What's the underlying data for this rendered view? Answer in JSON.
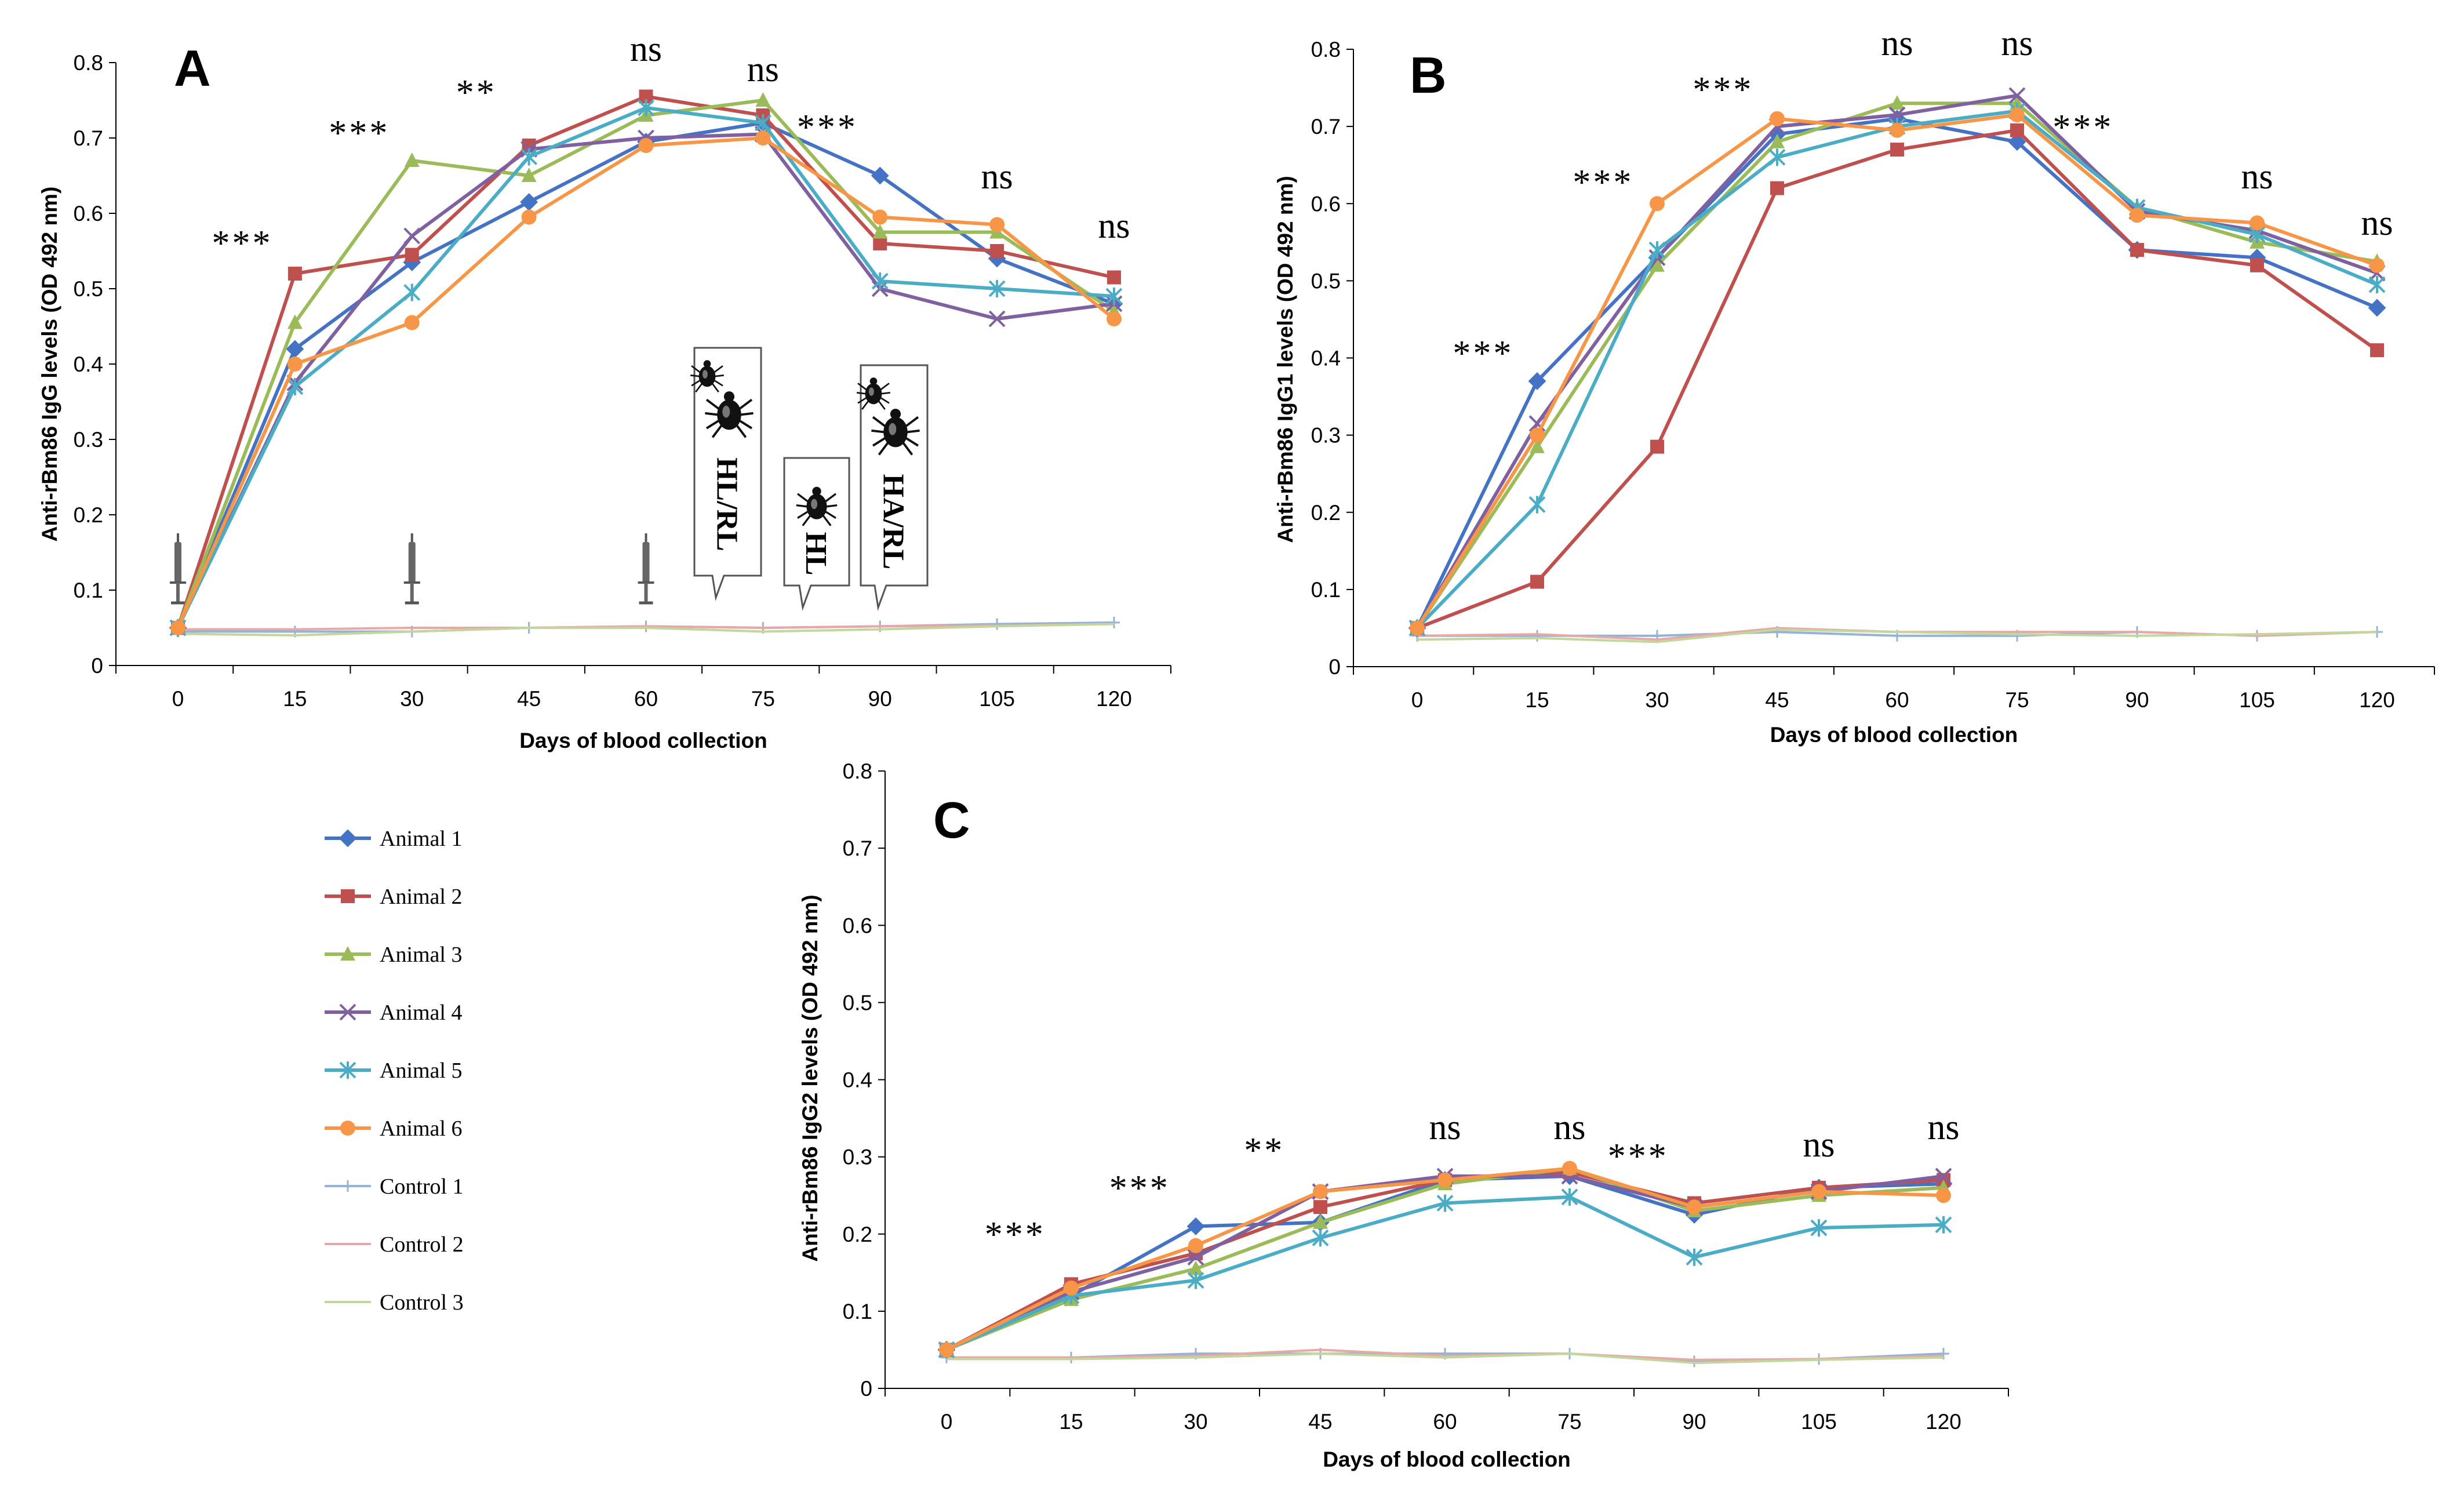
{
  "figure": {
    "x_axis_title": "Days of blood collection",
    "legend": {
      "entries": [
        {
          "name": "Animal 1",
          "color": "#4472C4",
          "marker": "diamond"
        },
        {
          "name": "Animal 2",
          "color": "#C0504D",
          "marker": "square"
        },
        {
          "name": "Animal 3",
          "color": "#9BBB59",
          "marker": "triangle"
        },
        {
          "name": "Animal 4",
          "color": "#7F60A0",
          "marker": "x"
        },
        {
          "name": "Animal 5",
          "color": "#4BACC6",
          "marker": "star"
        },
        {
          "name": "Animal 6",
          "color": "#F79646",
          "marker": "circle"
        },
        {
          "name": "Control 1",
          "color": "#95B3D7",
          "marker": "plus"
        },
        {
          "name": "Control 2",
          "color": "#E6A9A7",
          "marker": "none"
        },
        {
          "name": "Control 3",
          "color": "#C3D69B",
          "marker": "none"
        }
      ]
    },
    "callouts": [
      {
        "text": "HL/RL",
        "ticks": 2
      },
      {
        "text": "HL",
        "ticks": 1
      },
      {
        "text": "HA/RL",
        "ticks": 2
      }
    ],
    "syringe_days": [
      0,
      30,
      60
    ]
  },
  "chart_data": [
    {
      "panel": "A",
      "type": "line",
      "ylabel": "Anti-rBm86 IgG levels (OD 492 nm)",
      "xlabel": "Days of blood collection",
      "x": [
        0,
        15,
        30,
        45,
        60,
        75,
        90,
        105,
        120
      ],
      "ylim": [
        0,
        0.8
      ],
      "yticks": [
        "0",
        "0.1",
        "0.2",
        "0.3",
        "0.4",
        "0.5",
        "0.6",
        "0.7",
        "0.8"
      ],
      "significance": [
        "",
        "***",
        "***",
        "**",
        "ns",
        "ns",
        "***",
        "ns",
        "ns"
      ],
      "series": [
        {
          "name": "Animal 1",
          "values": [
            0.05,
            0.42,
            0.535,
            0.615,
            0.695,
            0.72,
            0.65,
            0.54,
            0.48
          ]
        },
        {
          "name": "Animal 2",
          "values": [
            0.05,
            0.52,
            0.545,
            0.69,
            0.755,
            0.73,
            0.56,
            0.55,
            0.515
          ]
        },
        {
          "name": "Animal 3",
          "values": [
            0.05,
            0.455,
            0.67,
            0.65,
            0.73,
            0.75,
            0.575,
            0.575,
            0.47
          ]
        },
        {
          "name": "Animal 4",
          "values": [
            0.05,
            0.375,
            0.57,
            0.685,
            0.7,
            0.705,
            0.5,
            0.46,
            0.48
          ]
        },
        {
          "name": "Animal 5",
          "values": [
            0.05,
            0.37,
            0.495,
            0.675,
            0.74,
            0.72,
            0.51,
            0.5,
            0.49
          ]
        },
        {
          "name": "Animal 6",
          "values": [
            0.05,
            0.4,
            0.455,
            0.595,
            0.69,
            0.7,
            0.595,
            0.585,
            0.46
          ]
        },
        {
          "name": "Control 1",
          "values": [
            0.045,
            0.045,
            0.045,
            0.05,
            0.052,
            0.05,
            0.052,
            0.055,
            0.057
          ]
        },
        {
          "name": "Control 2",
          "values": [
            0.048,
            0.048,
            0.05,
            0.05,
            0.052,
            0.05,
            0.052,
            0.053,
            0.055
          ]
        },
        {
          "name": "Control 3",
          "values": [
            0.042,
            0.04,
            0.045,
            0.05,
            0.05,
            0.045,
            0.048,
            0.052,
            0.055
          ]
        }
      ]
    },
    {
      "panel": "B",
      "type": "line",
      "ylabel": "Anti-rBm86 IgG1 levels (OD 492 nm)",
      "xlabel": "Days of blood collection",
      "x": [
        0,
        15,
        30,
        45,
        60,
        75,
        90,
        105,
        120
      ],
      "ylim": [
        0,
        0.8
      ],
      "yticks": [
        "0",
        "0.1",
        "0.2",
        "0.3",
        "0.4",
        "0.5",
        "0.6",
        "0.7",
        "0.8"
      ],
      "significance": [
        "",
        "***",
        "***",
        "***",
        "ns",
        "ns",
        "***",
        "ns",
        "ns"
      ],
      "series": [
        {
          "name": "Animal 1",
          "values": [
            0.05,
            0.37,
            0.53,
            0.69,
            0.71,
            0.68,
            0.54,
            0.53,
            0.465
          ]
        },
        {
          "name": "Animal 2",
          "values": [
            0.05,
            0.11,
            0.285,
            0.62,
            0.67,
            0.695,
            0.54,
            0.52,
            0.41
          ]
        },
        {
          "name": "Animal 3",
          "values": [
            0.05,
            0.285,
            0.52,
            0.68,
            0.73,
            0.73,
            0.595,
            0.55,
            0.525
          ]
        },
        {
          "name": "Animal 4",
          "values": [
            0.05,
            0.315,
            0.53,
            0.7,
            0.715,
            0.74,
            0.59,
            0.565,
            0.51
          ]
        },
        {
          "name": "Animal 5",
          "values": [
            0.05,
            0.21,
            0.54,
            0.66,
            0.7,
            0.72,
            0.595,
            0.56,
            0.495
          ]
        },
        {
          "name": "Animal 6",
          "values": [
            0.05,
            0.3,
            0.6,
            0.71,
            0.695,
            0.715,
            0.585,
            0.575,
            0.52
          ]
        },
        {
          "name": "Control 1",
          "values": [
            0.04,
            0.04,
            0.04,
            0.045,
            0.04,
            0.04,
            0.045,
            0.04,
            0.045
          ]
        },
        {
          "name": "Control 2",
          "values": [
            0.04,
            0.042,
            0.035,
            0.05,
            0.045,
            0.045,
            0.045,
            0.04,
            0.045
          ]
        },
        {
          "name": "Control 3",
          "values": [
            0.035,
            0.037,
            0.032,
            0.048,
            0.045,
            0.042,
            0.04,
            0.042,
            0.045
          ]
        }
      ]
    },
    {
      "panel": "C",
      "type": "line",
      "ylabel": "Anti-rBm86 IgG2 levels (OD 492 nm)",
      "xlabel": "Days of blood collection",
      "x": [
        0,
        15,
        30,
        45,
        60,
        75,
        90,
        105,
        120
      ],
      "ylim": [
        0,
        0.8
      ],
      "yticks": [
        "0",
        "0.1",
        "0.2",
        "0.3",
        "0.4",
        "0.5",
        "0.6",
        "0.7",
        "0.8"
      ],
      "significance": [
        "",
        "***",
        "***",
        "**",
        "ns",
        "ns",
        "***",
        "ns",
        "ns"
      ],
      "series": [
        {
          "name": "Animal 1",
          "values": [
            0.05,
            0.12,
            0.21,
            0.215,
            0.27,
            0.275,
            0.225,
            0.26,
            0.265
          ]
        },
        {
          "name": "Animal 2",
          "values": [
            0.05,
            0.135,
            0.175,
            0.235,
            0.27,
            0.28,
            0.24,
            0.26,
            0.27
          ]
        },
        {
          "name": "Animal 3",
          "values": [
            0.05,
            0.115,
            0.155,
            0.215,
            0.265,
            0.285,
            0.23,
            0.25,
            0.26
          ]
        },
        {
          "name": "Animal 4",
          "values": [
            0.05,
            0.125,
            0.17,
            0.255,
            0.275,
            0.275,
            0.235,
            0.255,
            0.275
          ]
        },
        {
          "name": "Animal 5",
          "values": [
            0.05,
            0.12,
            0.14,
            0.195,
            0.24,
            0.248,
            0.17,
            0.208,
            0.212
          ]
        },
        {
          "name": "Animal 6",
          "values": [
            0.05,
            0.13,
            0.185,
            0.255,
            0.27,
            0.285,
            0.235,
            0.255,
            0.25
          ]
        },
        {
          "name": "Control 1",
          "values": [
            0.04,
            0.04,
            0.045,
            0.045,
            0.045,
            0.045,
            0.035,
            0.038,
            0.045
          ]
        },
        {
          "name": "Control 2",
          "values": [
            0.04,
            0.04,
            0.042,
            0.05,
            0.042,
            0.045,
            0.037,
            0.038,
            0.042
          ]
        },
        {
          "name": "Control 3",
          "values": [
            0.038,
            0.038,
            0.04,
            0.045,
            0.04,
            0.045,
            0.033,
            0.037,
            0.04
          ]
        }
      ]
    }
  ]
}
